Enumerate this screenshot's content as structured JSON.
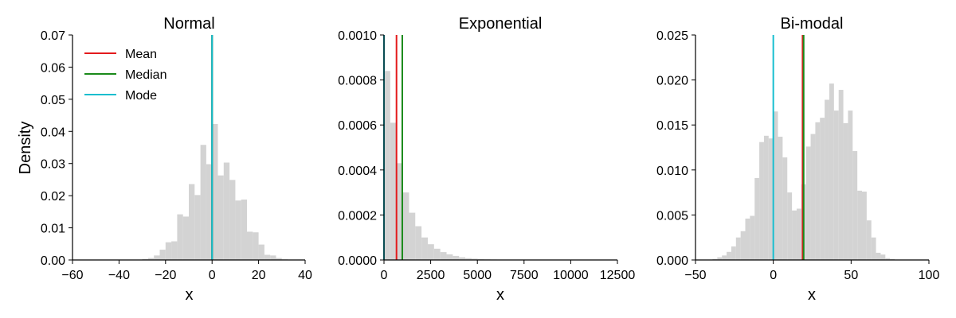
{
  "chart_data": [
    {
      "type": "histogram",
      "title": "Normal",
      "xlabel": "x",
      "ylabel": "Density",
      "xlim": [
        -60,
        40
      ],
      "ylim": [
        0,
        0.07
      ],
      "xticks": [
        -60,
        -40,
        -20,
        0,
        20,
        40
      ],
      "xtick_labels": [
        "−60",
        "−40",
        "−20",
        "0",
        "20",
        "40"
      ],
      "yticks": [
        0,
        0.01,
        0.02,
        0.03,
        0.04,
        0.05,
        0.06,
        0.07
      ],
      "ytick_labels": [
        "0.00",
        "0.01",
        "0.02",
        "0.03",
        "0.04",
        "0.05",
        "0.06",
        "0.07"
      ],
      "bin_edges": [
        -30,
        -27.5,
        -25,
        -22.5,
        -20,
        -17.5,
        -15,
        -12.5,
        -10,
        -7.5,
        -5,
        -2.5,
        0,
        2.5,
        5,
        7.5,
        10,
        12.5,
        15,
        17.5,
        20,
        22.5,
        25,
        27.5,
        30,
        32.5
      ],
      "density": [
        0.0003,
        0.0006,
        0.0014,
        0.0032,
        0.0055,
        0.0058,
        0.0142,
        0.0135,
        0.0236,
        0.0202,
        0.0358,
        0.0298,
        0.0423,
        0.0263,
        0.0303,
        0.0249,
        0.0185,
        0.0188,
        0.0088,
        0.0086,
        0.0048,
        0.0016,
        0.0014,
        0.0006,
        0.0002
      ],
      "lines": [
        {
          "name": "Mean",
          "x": 0.0,
          "color": "#e31a1c"
        },
        {
          "name": "Median",
          "x": 0.0,
          "color": "#1a8a1a"
        },
        {
          "name": "Mode",
          "x": 0.0,
          "color": "#17becf"
        }
      ],
      "legend": {
        "show": true,
        "placement": "upper-left",
        "entries": [
          "Mean",
          "Median",
          "Mode"
        ]
      },
      "grid": false
    },
    {
      "type": "histogram",
      "title": "Exponential",
      "xlabel": "x",
      "ylabel": "",
      "xlim": [
        0,
        12500
      ],
      "ylim": [
        0,
        0.001
      ],
      "xticks": [
        0,
        2500,
        5000,
        7500,
        10000,
        12500
      ],
      "xtick_labels": [
        "0",
        "2500",
        "5000",
        "7500",
        "10000",
        "12500"
      ],
      "yticks": [
        0,
        0.0002,
        0.0004,
        0.0006,
        0.0008,
        0.001
      ],
      "ytick_labels": [
        "0.0000",
        "0.0002",
        "0.0004",
        "0.0006",
        "0.0008",
        "0.0010"
      ],
      "bin_edges": [
        0,
        335,
        670,
        1005,
        1340,
        1675,
        2010,
        2345,
        2680,
        3015,
        3350,
        3685,
        4020,
        4355,
        4690,
        5025,
        5360,
        5695,
        6030
      ],
      "density": [
        0.00084,
        0.00061,
        0.00043,
        0.0003,
        0.00021,
        0.00015,
        0.0001,
        7e-05,
        5e-05,
        3.5e-05,
        2.5e-05,
        1.8e-05,
        1.2e-05,
        8e-06,
        6e-06,
        4e-06,
        3e-06,
        2e-06
      ],
      "lines": [
        {
          "name": "Mean",
          "x": 670,
          "color": "#e31a1c"
        },
        {
          "name": "Median",
          "x": 980,
          "color": "#1a8a1a"
        },
        {
          "name": "Mode",
          "x": 0,
          "color": "#17becf"
        }
      ],
      "legend": {
        "show": false
      },
      "grid": false
    },
    {
      "type": "histogram",
      "title": "Bi-modal",
      "xlabel": "x",
      "ylabel": "",
      "xlim": [
        -50,
        100
      ],
      "ylim": [
        0,
        0.025
      ],
      "xticks": [
        -50,
        0,
        50,
        100
      ],
      "xtick_labels": [
        "−50",
        "0",
        "50",
        "100"
      ],
      "yticks": [
        0,
        0.005,
        0.01,
        0.015,
        0.02,
        0.025
      ],
      "ytick_labels": [
        "0.000",
        "0.005",
        "0.010",
        "0.015",
        "0.020",
        "0.025"
      ],
      "bin_edges": [
        -39,
        -36,
        -33,
        -30,
        -27,
        -24,
        -21,
        -18,
        -15,
        -12,
        -9,
        -6,
        -3,
        0,
        3,
        6,
        9,
        12,
        15,
        18,
        21,
        24,
        27,
        30,
        33,
        36,
        39,
        42,
        45,
        48,
        51,
        54,
        57,
        60,
        63,
        66,
        69,
        72,
        75,
        78
      ],
      "density": [
        0.0001,
        0.0003,
        0.0005,
        0.0009,
        0.0015,
        0.0025,
        0.0032,
        0.0046,
        0.0049,
        0.0091,
        0.0131,
        0.0138,
        0.0135,
        0.0165,
        0.0137,
        0.0114,
        0.0075,
        0.0055,
        0.0057,
        0.0084,
        0.0126,
        0.014,
        0.0153,
        0.0158,
        0.0178,
        0.0196,
        0.0166,
        0.0189,
        0.0152,
        0.0166,
        0.0121,
        0.0077,
        0.0076,
        0.0044,
        0.0025,
        0.0008,
        0.0006,
        0.0002,
        0.0001
      ],
      "lines": [
        {
          "name": "Mean",
          "x": 18.8,
          "color": "#e31a1c"
        },
        {
          "name": "Median",
          "x": 19.5,
          "color": "#1a8a1a"
        },
        {
          "name": "Mode",
          "x": 0.0,
          "color": "#17becf"
        }
      ],
      "legend": {
        "show": false
      },
      "grid": false
    }
  ],
  "colors": {
    "bars": "#d3d3d3",
    "axis": "#000000"
  }
}
